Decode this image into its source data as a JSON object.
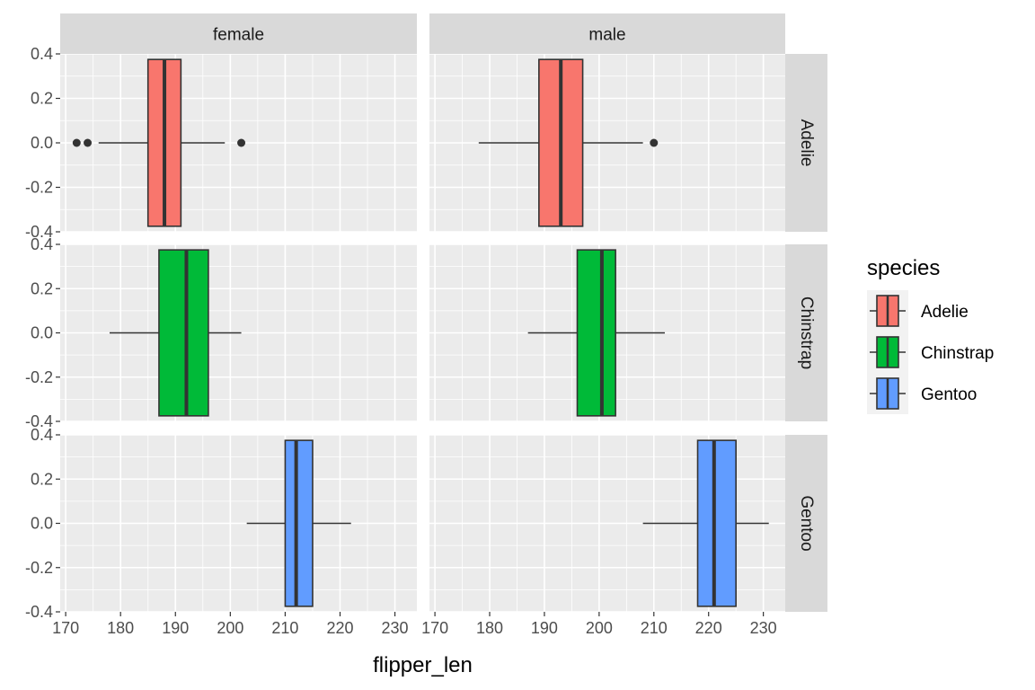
{
  "chart_data": {
    "type": "boxplot",
    "facet_cols": [
      "female",
      "male"
    ],
    "facet_rows": [
      "Adelie",
      "Chinstrap",
      "Gentoo"
    ],
    "xlabel": "flipper_len",
    "xlim": [
      169,
      234
    ],
    "x_ticks": [
      170,
      180,
      190,
      200,
      210,
      220,
      230
    ],
    "ylim": [
      -0.4,
      0.4
    ],
    "y_ticks": [
      0.4,
      0.2,
      0.0,
      -0.2,
      -0.4
    ],
    "y_tick_labels": [
      "0.4",
      "0.2",
      "0.0",
      "-0.2",
      "-0.4"
    ],
    "legend": {
      "title": "species",
      "entries": [
        {
          "label": "Adelie",
          "color": "#F8766D"
        },
        {
          "label": "Chinstrap",
          "color": "#00BA38"
        },
        {
          "label": "Gentoo",
          "color": "#619CFF"
        }
      ]
    },
    "boxes": [
      {
        "sex": "female",
        "species": "Adelie",
        "whisker_low": 176,
        "q1": 185,
        "median": 188,
        "q3": 191,
        "whisker_high": 199,
        "outliers": [
          172,
          174,
          202
        ]
      },
      {
        "sex": "male",
        "species": "Adelie",
        "whisker_low": 178,
        "q1": 189,
        "median": 193,
        "q3": 197,
        "whisker_high": 208,
        "outliers": [
          210
        ]
      },
      {
        "sex": "female",
        "species": "Chinstrap",
        "whisker_low": 178,
        "q1": 187,
        "median": 192,
        "q3": 196,
        "whisker_high": 202,
        "outliers": []
      },
      {
        "sex": "male",
        "species": "Chinstrap",
        "whisker_low": 187,
        "q1": 196,
        "median": 200.5,
        "q3": 203,
        "whisker_high": 212,
        "outliers": []
      },
      {
        "sex": "female",
        "species": "Gentoo",
        "whisker_low": 203,
        "q1": 210,
        "median": 212,
        "q3": 215,
        "whisker_high": 222,
        "outliers": []
      },
      {
        "sex": "male",
        "species": "Gentoo",
        "whisker_low": 208,
        "q1": 218,
        "median": 221,
        "q3": 225,
        "whisker_high": 231,
        "outliers": []
      }
    ]
  }
}
